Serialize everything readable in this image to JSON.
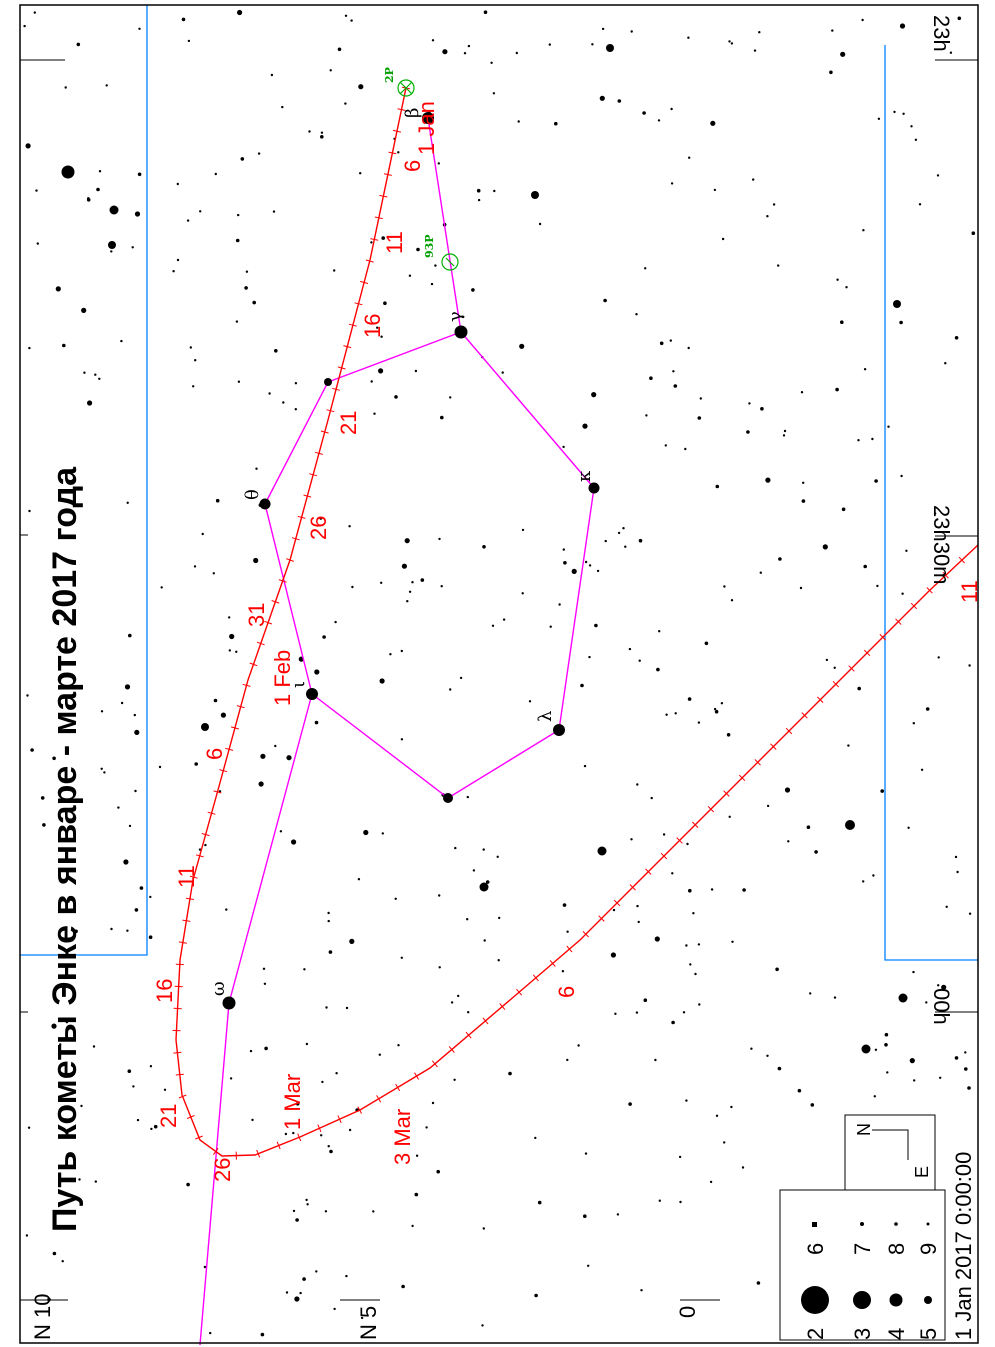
{
  "title": "Путь кометы Энке в январе - марте 2017 года",
  "ra_labels": [
    "23h",
    "23h30m",
    "00h"
  ],
  "dec_labels": [
    "N 10",
    "N 5",
    "0"
  ],
  "comet_labels": {
    "encke": "2P",
    "other": "93P"
  },
  "encke_date_labels": [
    "1 Jan",
    "6",
    "11",
    "16",
    "21",
    "26",
    "31",
    "1 Feb",
    "6",
    "11",
    "16",
    "21",
    "26",
    "1 Mar",
    "3 Mar"
  ],
  "second_track_date_labels": [
    "6",
    "11"
  ],
  "star_greek_labels": [
    "β",
    "γ",
    "κ",
    "θ",
    "ι",
    "λ",
    "ω"
  ],
  "legend": {
    "magnitudes": [
      "2",
      "3",
      "4",
      "5",
      "6",
      "7",
      "8",
      "9"
    ],
    "compass_n": "N",
    "compass_e": "E",
    "epoch": "1 Jan 2017  0:00:00"
  },
  "colors": {
    "track": "#ff0000",
    "constellation_lines": "#ff00ff",
    "boundaries": "#0080ff",
    "comet_marker": "#00b000",
    "stars": "#000000"
  }
}
